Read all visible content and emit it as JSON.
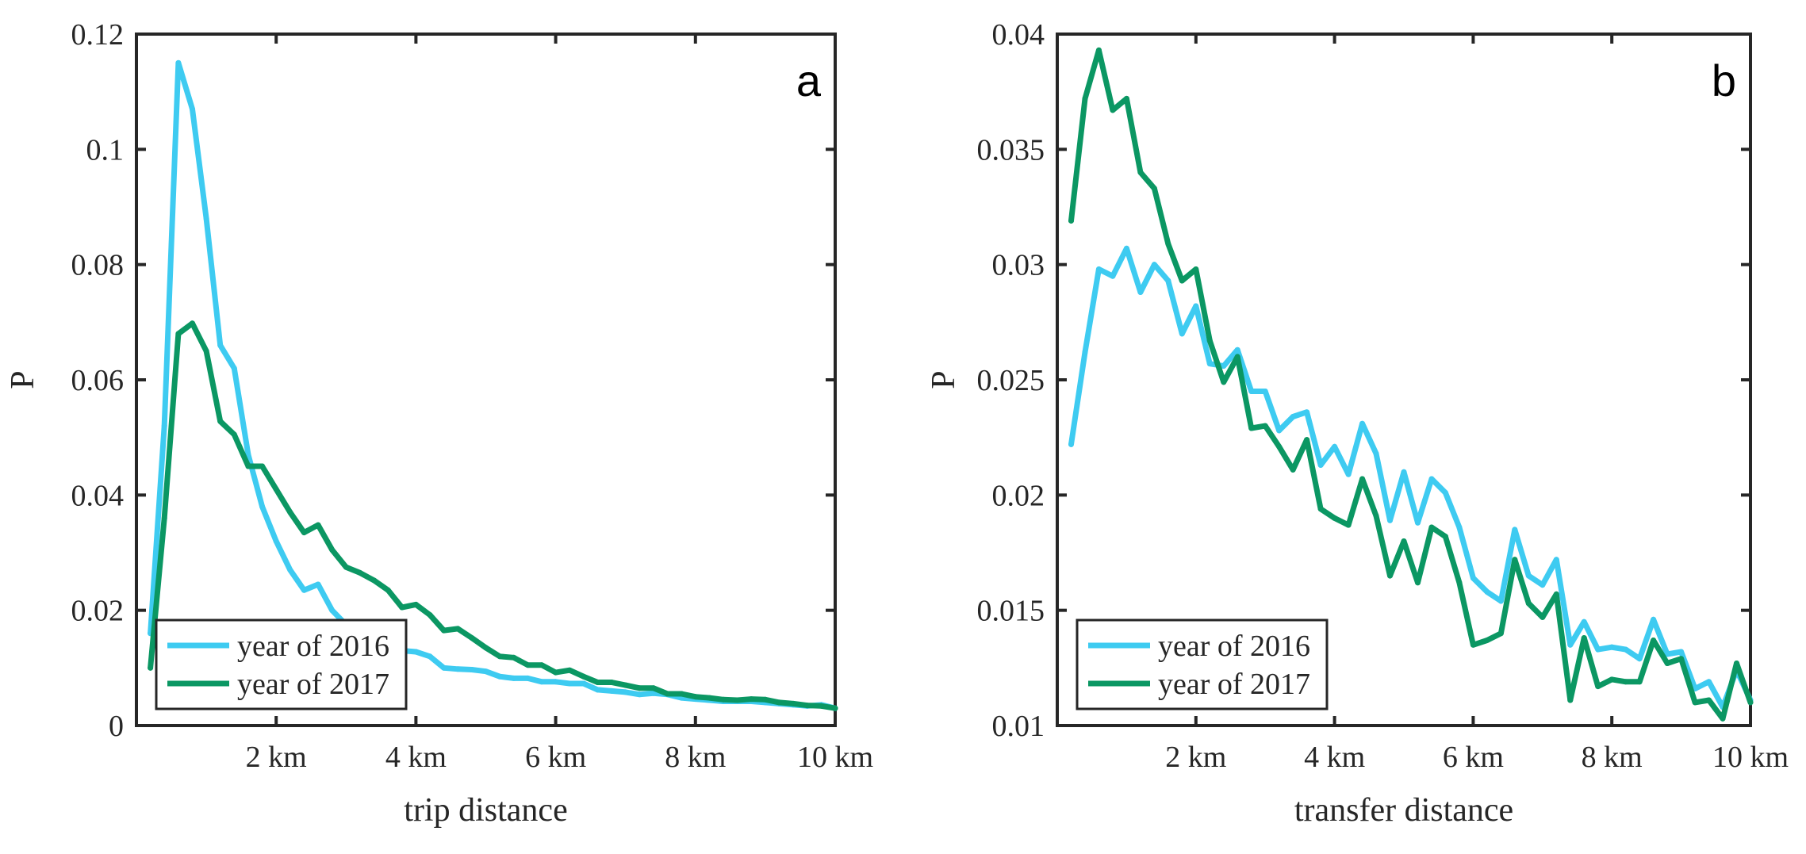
{
  "chart_data": [
    {
      "type": "line",
      "panel_label": "a",
      "title": "",
      "xlabel": "trip distance",
      "ylabel": "P",
      "xlim": [
        0,
        10
      ],
      "ylim": [
        0,
        0.12
      ],
      "xticks": [
        2,
        4,
        6,
        8,
        10
      ],
      "xtick_labels": [
        "2 km",
        "4 km",
        "6 km",
        "8 km",
        "10 km"
      ],
      "yticks": [
        0,
        0.02,
        0.04,
        0.06,
        0.08,
        0.1,
        0.12
      ],
      "ytick_labels": [
        "0",
        "0.02",
        "0.04",
        "0.06",
        "0.08",
        "0.1",
        "0.12"
      ],
      "x": [
        0.2,
        0.4,
        0.6,
        0.8,
        1.0,
        1.2,
        1.4,
        1.6,
        1.8,
        2.0,
        2.2,
        2.4,
        2.6,
        2.8,
        3.0,
        3.2,
        3.4,
        3.6,
        3.8,
        4.0,
        4.2,
        4.4,
        4.6,
        4.8,
        5.0,
        5.2,
        5.4,
        5.6,
        5.8,
        6.0,
        6.2,
        6.4,
        6.6,
        6.8,
        7.0,
        7.2,
        7.4,
        7.6,
        7.8,
        8.0,
        8.2,
        8.4,
        8.6,
        8.8,
        9.0,
        9.2,
        9.4,
        9.6,
        9.8,
        10.0
      ],
      "series": [
        {
          "name": "year of 2016",
          "color": "#3ecbf1",
          "values": [
            0.016,
            0.052,
            0.115,
            0.107,
            0.088,
            0.066,
            0.062,
            0.047,
            0.038,
            0.032,
            0.027,
            0.0235,
            0.0245,
            0.02,
            0.0175,
            0.016,
            0.0145,
            0.0135,
            0.013,
            0.0128,
            0.012,
            0.01,
            0.0098,
            0.0097,
            0.0094,
            0.0085,
            0.0082,
            0.0082,
            0.0076,
            0.0076,
            0.0073,
            0.0073,
            0.0062,
            0.006,
            0.0058,
            0.0054,
            0.0056,
            0.0054,
            0.0048,
            0.0046,
            0.0044,
            0.0042,
            0.0042,
            0.0042,
            0.004,
            0.0038,
            0.0036,
            0.0034,
            0.0036,
            0.003
          ]
        },
        {
          "name": "year of 2017",
          "color": "#0b9763",
          "values": [
            0.01,
            0.036,
            0.068,
            0.0698,
            0.065,
            0.0528,
            0.0505,
            0.045,
            0.045,
            0.041,
            0.037,
            0.0335,
            0.0348,
            0.0305,
            0.0275,
            0.0265,
            0.0252,
            0.0235,
            0.0205,
            0.021,
            0.0192,
            0.0165,
            0.0168,
            0.0152,
            0.0135,
            0.012,
            0.0118,
            0.0105,
            0.0105,
            0.0092,
            0.0096,
            0.0085,
            0.0075,
            0.0075,
            0.007,
            0.0065,
            0.0065,
            0.0055,
            0.0055,
            0.005,
            0.0048,
            0.0045,
            0.0044,
            0.0046,
            0.0045,
            0.004,
            0.0038,
            0.0035,
            0.0034,
            0.003
          ]
        }
      ],
      "legend": {
        "position": "bottom-left",
        "entries": [
          "year of 2016",
          "year of 2017"
        ]
      },
      "grid": false
    },
    {
      "type": "line",
      "panel_label": "b",
      "title": "",
      "xlabel": "transfer distance",
      "ylabel": "P",
      "xlim": [
        0,
        10
      ],
      "ylim": [
        0.01,
        0.04
      ],
      "xticks": [
        2,
        4,
        6,
        8,
        10
      ],
      "xtick_labels": [
        "2 km",
        "4 km",
        "6 km",
        "8 km",
        "10 km"
      ],
      "yticks": [
        0.01,
        0.015,
        0.02,
        0.025,
        0.03,
        0.035,
        0.04
      ],
      "ytick_labels": [
        "0.01",
        "0.015",
        "0.02",
        "0.025",
        "0.03",
        "0.035",
        "0.04"
      ],
      "x": [
        0.2,
        0.4,
        0.6,
        0.8,
        1.0,
        1.2,
        1.4,
        1.6,
        1.8,
        2.0,
        2.2,
        2.4,
        2.6,
        2.8,
        3.0,
        3.2,
        3.4,
        3.6,
        3.8,
        4.0,
        4.2,
        4.4,
        4.6,
        4.8,
        5.0,
        5.2,
        5.4,
        5.6,
        5.8,
        6.0,
        6.2,
        6.4,
        6.6,
        6.8,
        7.0,
        7.2,
        7.4,
        7.6,
        7.8,
        8.0,
        8.2,
        8.4,
        8.6,
        8.8,
        9.0,
        9.2,
        9.4,
        9.6,
        9.8,
        10.0
      ],
      "series": [
        {
          "name": "year of 2016",
          "color": "#3ecbf1",
          "values": [
            0.0222,
            0.0262,
            0.0298,
            0.0295,
            0.0307,
            0.0288,
            0.03,
            0.0293,
            0.027,
            0.0282,
            0.0257,
            0.0256,
            0.0263,
            0.0245,
            0.0245,
            0.0228,
            0.0234,
            0.0236,
            0.0213,
            0.0221,
            0.0209,
            0.0231,
            0.0218,
            0.0189,
            0.021,
            0.0188,
            0.0207,
            0.0201,
            0.0186,
            0.0164,
            0.0158,
            0.0154,
            0.0185,
            0.0165,
            0.0161,
            0.0172,
            0.0135,
            0.0145,
            0.0133,
            0.0134,
            0.0133,
            0.0129,
            0.0146,
            0.0131,
            0.0132,
            0.0116,
            0.0119,
            0.0108,
            0.0124,
            0.0111
          ]
        },
        {
          "name": "year of 2017",
          "color": "#0b9763",
          "values": [
            0.0319,
            0.0372,
            0.0393,
            0.0367,
            0.0372,
            0.034,
            0.0333,
            0.0309,
            0.0293,
            0.0298,
            0.0267,
            0.0249,
            0.026,
            0.0229,
            0.023,
            0.0221,
            0.0211,
            0.0224,
            0.0194,
            0.019,
            0.0187,
            0.0207,
            0.0191,
            0.0165,
            0.018,
            0.0162,
            0.0186,
            0.0182,
            0.0162,
            0.0135,
            0.0137,
            0.014,
            0.0172,
            0.0153,
            0.0147,
            0.0157,
            0.0111,
            0.0138,
            0.0117,
            0.012,
            0.0119,
            0.0119,
            0.0137,
            0.0127,
            0.0129,
            0.011,
            0.0111,
            0.0103,
            0.0127,
            0.011
          ]
        }
      ],
      "legend": {
        "position": "bottom-left",
        "entries": [
          "year of 2016",
          "year of 2017"
        ]
      },
      "grid": false
    }
  ]
}
